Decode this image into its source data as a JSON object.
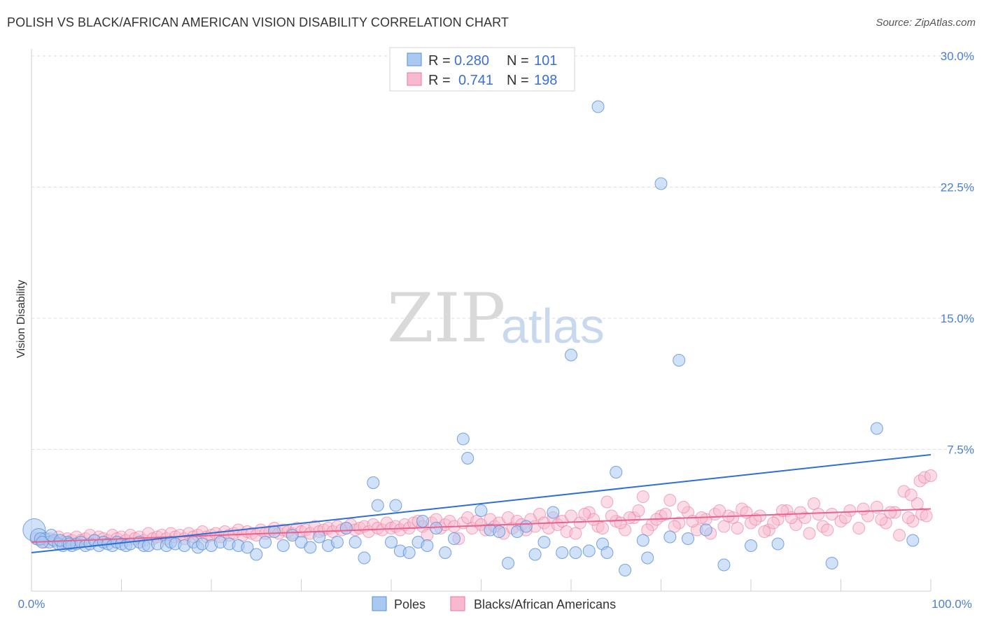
{
  "header": {
    "title": "POLISH VS BLACK/AFRICAN AMERICAN VISION DISABILITY CORRELATION CHART",
    "source": "Source: ZipAtlas.com"
  },
  "watermark": {
    "part1": "ZIP",
    "part2": "atlas"
  },
  "legend_top": {
    "rows": [
      {
        "r_label": "R =",
        "r_value": "0.280",
        "n_label": "N =",
        "n_value": "101"
      },
      {
        "r_label": "R =",
        "r_value": "0.741",
        "n_label": "N =",
        "n_value": "198"
      }
    ]
  },
  "legend_bottom": {
    "series1": "Poles",
    "series2": "Blacks/African Americans"
  },
  "colors": {
    "poles_fill": "#a9c8f2",
    "poles_stroke": "#5b8fd6",
    "poles_line": "#2f6fd4",
    "black_fill": "#f7b9cd",
    "black_stroke": "#e8779c",
    "black_line": "#e8628f",
    "tick_text": "#4a7fcf",
    "grid": "#dcdcdc"
  },
  "chart_data": {
    "type": "scatter",
    "title": "POLISH VS BLACK/AFRICAN AMERICAN VISION DISABILITY CORRELATION CHART",
    "xlabel": "",
    "ylabel": "Vision Disability",
    "xlim": [
      0,
      100
    ],
    "ylim": [
      0,
      30
    ],
    "y_ticks": [
      "7.5%",
      "15.0%",
      "22.5%",
      "30.0%"
    ],
    "y_tick_values": [
      7.5,
      15.0,
      22.5,
      30.0
    ],
    "x_ticks": [
      "0.0%",
      "100.0%"
    ],
    "x_tick_values": [
      0,
      100
    ],
    "grid": "horizontal dashed",
    "legend_position": "top-center",
    "series": [
      {
        "name": "Poles",
        "R": 0.28,
        "N": 101,
        "trend": {
          "x": [
            0,
            100
          ],
          "y": [
            1.6,
            7.2
          ]
        },
        "points": [
          [
            0.3,
            2.9
          ],
          [
            0.8,
            2.5
          ],
          [
            1.5,
            2.4
          ],
          [
            2,
            2.2
          ],
          [
            2.5,
            2.3
          ],
          [
            3,
            2.1
          ],
          [
            3.5,
            2.0
          ],
          [
            4,
            2.2
          ],
          [
            4.5,
            2.0
          ],
          [
            5,
            2.1
          ],
          [
            5.5,
            2.2
          ],
          [
            6,
            2.0
          ],
          [
            6.5,
            2.1
          ],
          [
            7,
            2.3
          ],
          [
            7.5,
            2.0
          ],
          [
            8,
            2.2
          ],
          [
            8.5,
            2.1
          ],
          [
            9,
            2.0
          ],
          [
            9.5,
            2.2
          ],
          [
            10,
            2.1
          ],
          [
            10.5,
            2.0
          ],
          [
            11,
            2.1
          ],
          [
            12,
            2.2
          ],
          [
            12.5,
            2.0
          ],
          [
            13,
            2.0
          ],
          [
            14,
            2.1
          ],
          [
            15,
            2.0
          ],
          [
            15.5,
            2.2
          ],
          [
            16,
            2.1
          ],
          [
            17,
            2.0
          ],
          [
            18,
            2.2
          ],
          [
            18.5,
            1.9
          ],
          [
            19,
            2.1
          ],
          [
            20,
            2.0
          ],
          [
            21,
            2.2
          ],
          [
            22,
            2.1
          ],
          [
            23,
            2.0
          ],
          [
            24,
            1.9
          ],
          [
            25,
            1.5
          ],
          [
            26,
            2.2
          ],
          [
            27,
            2.8
          ],
          [
            28,
            2.0
          ],
          [
            29,
            2.6
          ],
          [
            30,
            2.2
          ],
          [
            31,
            1.9
          ],
          [
            32,
            2.5
          ],
          [
            33,
            2.0
          ],
          [
            34,
            2.2
          ],
          [
            35,
            3.0
          ],
          [
            36,
            2.2
          ],
          [
            37,
            1.3
          ],
          [
            38,
            5.6
          ],
          [
            38.5,
            4.3
          ],
          [
            40,
            2.2
          ],
          [
            40.5,
            4.3
          ],
          [
            41,
            1.7
          ],
          [
            42,
            1.6
          ],
          [
            43,
            2.2
          ],
          [
            43.5,
            3.4
          ],
          [
            44,
            2.0
          ],
          [
            45,
            3.0
          ],
          [
            46,
            1.6
          ],
          [
            47,
            2.4
          ],
          [
            48,
            8.1
          ],
          [
            48.5,
            7.0
          ],
          [
            50,
            4.0
          ],
          [
            51,
            2.9
          ],
          [
            52,
            2.8
          ],
          [
            53,
            1.0
          ],
          [
            54,
            2.8
          ],
          [
            55,
            3.1
          ],
          [
            56,
            1.5
          ],
          [
            57,
            2.2
          ],
          [
            58,
            3.9
          ],
          [
            59,
            1.6
          ],
          [
            60,
            12.9
          ],
          [
            60.5,
            1.6
          ],
          [
            62,
            1.7
          ],
          [
            63,
            27.1
          ],
          [
            63.5,
            2.1
          ],
          [
            64,
            1.6
          ],
          [
            65,
            6.2
          ],
          [
            66,
            0.6
          ],
          [
            68,
            2.3
          ],
          [
            68.5,
            1.3
          ],
          [
            70,
            22.7
          ],
          [
            71,
            2.5
          ],
          [
            72,
            12.6
          ],
          [
            73,
            2.4
          ],
          [
            75,
            2.9
          ],
          [
            77,
            0.9
          ],
          [
            80,
            2.0
          ],
          [
            83,
            2.1
          ],
          [
            89,
            1.0
          ],
          [
            94,
            8.7
          ],
          [
            98,
            2.3
          ],
          [
            1,
            2.4
          ],
          [
            1.2,
            2.2
          ],
          [
            2.2,
            2.6
          ],
          [
            3.2,
            2.3
          ],
          [
            4.2,
            2.1
          ]
        ]
      },
      {
        "name": "Blacks/African Americans",
        "R": 0.741,
        "N": 198,
        "trend": {
          "x": [
            0,
            100
          ],
          "y": [
            2.2,
            4.1
          ]
        },
        "points": [
          [
            0.5,
            2.4
          ],
          [
            1,
            2.3
          ],
          [
            1.5,
            2.2
          ],
          [
            2,
            2.4
          ],
          [
            2.5,
            2.3
          ],
          [
            3,
            2.5
          ],
          [
            3.5,
            2.2
          ],
          [
            4,
            2.4
          ],
          [
            4.5,
            2.3
          ],
          [
            5,
            2.5
          ],
          [
            5.5,
            2.3
          ],
          [
            6,
            2.4
          ],
          [
            6.5,
            2.6
          ],
          [
            7,
            2.3
          ],
          [
            7.5,
            2.5
          ],
          [
            8,
            2.4
          ],
          [
            8.5,
            2.3
          ],
          [
            9,
            2.6
          ],
          [
            9.5,
            2.4
          ],
          [
            10,
            2.5
          ],
          [
            10.5,
            2.3
          ],
          [
            11,
            2.6
          ],
          [
            11.5,
            2.4
          ],
          [
            12,
            2.5
          ],
          [
            12.5,
            2.3
          ],
          [
            13,
            2.7
          ],
          [
            13.5,
            2.4
          ],
          [
            14,
            2.5
          ],
          [
            14.5,
            2.6
          ],
          [
            15,
            2.4
          ],
          [
            15.5,
            2.7
          ],
          [
            16,
            2.5
          ],
          [
            16.5,
            2.6
          ],
          [
            17,
            2.4
          ],
          [
            17.5,
            2.7
          ],
          [
            18,
            2.5
          ],
          [
            18.5,
            2.6
          ],
          [
            19,
            2.8
          ],
          [
            19.5,
            2.5
          ],
          [
            20,
            2.6
          ],
          [
            20.5,
            2.7
          ],
          [
            21,
            2.5
          ],
          [
            21.5,
            2.8
          ],
          [
            22,
            2.6
          ],
          [
            22.5,
            2.7
          ],
          [
            23,
            2.9
          ],
          [
            23.5,
            2.6
          ],
          [
            24,
            2.8
          ],
          [
            24.5,
            2.7
          ],
          [
            25,
            2.6
          ],
          [
            25.5,
            2.9
          ],
          [
            26,
            2.7
          ],
          [
            26.5,
            2.8
          ],
          [
            27,
            3.0
          ],
          [
            27.5,
            2.7
          ],
          [
            28,
            2.9
          ],
          [
            28.5,
            2.8
          ],
          [
            29,
            2.7
          ],
          [
            29.5,
            3.0
          ],
          [
            30,
            2.8
          ],
          [
            30.5,
            2.9
          ],
          [
            31,
            2.7
          ],
          [
            31.5,
            3.1
          ],
          [
            32,
            2.8
          ],
          [
            32.5,
            2.9
          ],
          [
            33,
            3.0
          ],
          [
            33.5,
            2.8
          ],
          [
            34,
            3.1
          ],
          [
            34.5,
            2.9
          ],
          [
            35,
            3.0
          ],
          [
            35.5,
            3.2
          ],
          [
            36,
            2.9
          ],
          [
            36.5,
            3.0
          ],
          [
            37,
            3.1
          ],
          [
            37.5,
            2.8
          ],
          [
            38,
            3.2
          ],
          [
            38.5,
            3.0
          ],
          [
            39,
            2.9
          ],
          [
            39.5,
            3.3
          ],
          [
            40,
            3.0
          ],
          [
            40.5,
            3.1
          ],
          [
            41,
            2.9
          ],
          [
            41.5,
            3.2
          ],
          [
            42,
            3.0
          ],
          [
            42.5,
            3.3
          ],
          [
            43,
            3.4
          ],
          [
            43.5,
            3.1
          ],
          [
            44,
            2.6
          ],
          [
            44.5,
            3.3
          ],
          [
            45,
            3.5
          ],
          [
            45.5,
            3.0
          ],
          [
            46,
            3.2
          ],
          [
            46.5,
            3.4
          ],
          [
            47,
            3.1
          ],
          [
            47.5,
            2.4
          ],
          [
            48,
            3.3
          ],
          [
            48.5,
            3.6
          ],
          [
            49,
            3.0
          ],
          [
            49.5,
            3.4
          ],
          [
            50,
            3.2
          ],
          [
            50.5,
            2.9
          ],
          [
            51,
            3.5
          ],
          [
            51.5,
            3.1
          ],
          [
            52,
            3.3
          ],
          [
            52.5,
            2.7
          ],
          [
            53,
            3.6
          ],
          [
            53.5,
            3.0
          ],
          [
            54,
            3.4
          ],
          [
            54.5,
            3.2
          ],
          [
            55,
            2.9
          ],
          [
            55.5,
            3.5
          ],
          [
            56,
            3.1
          ],
          [
            56.5,
            3.8
          ],
          [
            57,
            3.3
          ],
          [
            57.5,
            3.0
          ],
          [
            58,
            3.6
          ],
          [
            58.5,
            3.2
          ],
          [
            59,
            3.4
          ],
          [
            59.5,
            2.8
          ],
          [
            60,
            3.7
          ],
          [
            61,
            3.3
          ],
          [
            62,
            3.9
          ],
          [
            63,
            3.1
          ],
          [
            64,
            4.5
          ],
          [
            65,
            3.4
          ],
          [
            66,
            2.9
          ],
          [
            67,
            3.6
          ],
          [
            68,
            4.8
          ],
          [
            69,
            3.2
          ],
          [
            70,
            3.7
          ],
          [
            71,
            4.6
          ],
          [
            72,
            3.3
          ],
          [
            73,
            3.9
          ],
          [
            74,
            2.9
          ],
          [
            75,
            3.5
          ],
          [
            76,
            3.8
          ],
          [
            77,
            3.1
          ],
          [
            78,
            3.6
          ],
          [
            79,
            4.1
          ],
          [
            80,
            3.3
          ],
          [
            81,
            3.7
          ],
          [
            82,
            2.9
          ],
          [
            83,
            3.5
          ],
          [
            84,
            4.0
          ],
          [
            85,
            3.2
          ],
          [
            86,
            3.6
          ],
          [
            87,
            4.4
          ],
          [
            88,
            3.1
          ],
          [
            89,
            3.8
          ],
          [
            90,
            3.4
          ],
          [
            91,
            4.0
          ],
          [
            92,
            3.0
          ],
          [
            93,
            3.7
          ],
          [
            94,
            4.2
          ],
          [
            95,
            3.3
          ],
          [
            96,
            3.9
          ],
          [
            97,
            5.1
          ],
          [
            98,
            3.4
          ],
          [
            99,
            3.8
          ],
          [
            88.5,
            2.9
          ],
          [
            90.5,
            3.6
          ],
          [
            92.5,
            4.1
          ],
          [
            94.5,
            3.5
          ],
          [
            95.5,
            3.9
          ],
          [
            96.5,
            2.6
          ],
          [
            97.5,
            3.6
          ],
          [
            98.5,
            4.4
          ],
          [
            99.5,
            3.7
          ],
          [
            85.5,
            3.9
          ],
          [
            86.5,
            2.7
          ],
          [
            87.5,
            3.8
          ],
          [
            84.5,
            3.6
          ],
          [
            83.5,
            4.0
          ],
          [
            82.5,
            3.3
          ],
          [
            81.5,
            2.8
          ],
          [
            80.5,
            3.5
          ],
          [
            79.5,
            3.9
          ],
          [
            78.5,
            3.0
          ],
          [
            77.5,
            3.7
          ],
          [
            76.5,
            4.0
          ],
          [
            75.5,
            2.7
          ],
          [
            74.5,
            3.6
          ],
          [
            73.5,
            3.4
          ],
          [
            72.5,
            4.2
          ],
          [
            71.5,
            3.1
          ],
          [
            70.5,
            3.8
          ],
          [
            69.5,
            3.5
          ],
          [
            68.5,
            2.9
          ],
          [
            67.5,
            4.0
          ],
          [
            66.5,
            3.6
          ],
          [
            65.5,
            3.3
          ],
          [
            64.5,
            3.7
          ],
          [
            63.5,
            3.0
          ],
          [
            62.5,
            3.5
          ],
          [
            61.5,
            3.8
          ],
          [
            60.5,
            2.7
          ],
          [
            97.8,
            4.9
          ],
          [
            98.8,
            5.7
          ],
          [
            99.3,
            5.9
          ],
          [
            100,
            6.0
          ]
        ]
      }
    ]
  }
}
